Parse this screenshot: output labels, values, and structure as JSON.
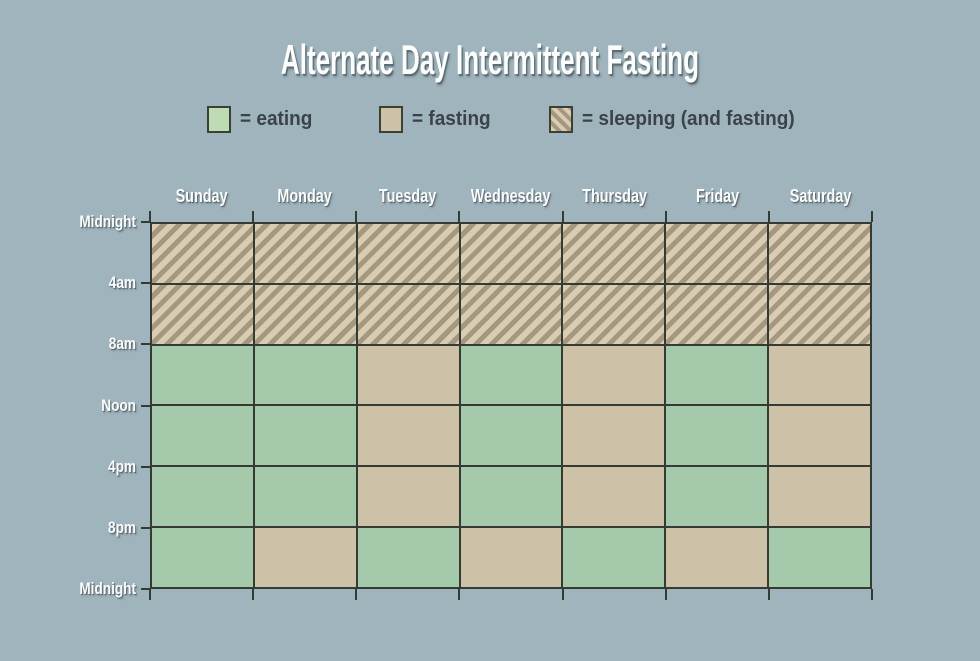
{
  "title": "Alternate Day Intermittent Fasting",
  "legend": {
    "items": [
      {
        "label": "= eating",
        "key": "eating"
      },
      {
        "label": "= fasting",
        "key": "fasting"
      },
      {
        "label": "= sleeping (and fasting)",
        "key": "sleeping"
      }
    ]
  },
  "colors": {
    "background": "#a0b4bd",
    "eating": "#a5c9ab",
    "legend_eating": "#bedcb4",
    "fasting": "#cdc2a8",
    "sleeping_light": "#d8ccb2",
    "sleeping_dark": "#a59780",
    "grid_line": "#333b33",
    "legend_text": "#3a4349",
    "label_text": "#fbfcfc"
  },
  "chart_data": {
    "type": "heatmap",
    "title": "Alternate Day Intermittent Fasting",
    "columns": [
      "Sunday",
      "Monday",
      "Tuesday",
      "Wednesday",
      "Thursday",
      "Friday",
      "Saturday"
    ],
    "time_axis_labels": [
      "Midnight",
      "4am",
      "8am",
      "Noon",
      "4pm",
      "8pm",
      "Midnight"
    ],
    "row_ranges": [
      "Midnight-4am",
      "4am-8am",
      "8am-Noon",
      "Noon-4pm",
      "4pm-8pm",
      "8pm-Midnight"
    ],
    "legend_entries": [
      "eating",
      "fasting",
      "sleeping (and fasting)"
    ],
    "layout": {
      "legend_position": "top",
      "grid": true
    },
    "cells": [
      [
        "sleeping",
        "sleeping",
        "sleeping",
        "sleeping",
        "sleeping",
        "sleeping",
        "sleeping"
      ],
      [
        "sleeping",
        "sleeping",
        "sleeping",
        "sleeping",
        "sleeping",
        "sleeping",
        "sleeping"
      ],
      [
        "eating",
        "eating",
        "fasting",
        "eating",
        "fasting",
        "eating",
        "fasting"
      ],
      [
        "eating",
        "eating",
        "fasting",
        "eating",
        "fasting",
        "eating",
        "fasting"
      ],
      [
        "eating",
        "eating",
        "fasting",
        "eating",
        "fasting",
        "eating",
        "fasting"
      ],
      [
        "eating",
        "fasting",
        "eating",
        "fasting",
        "eating",
        "fasting",
        "eating"
      ]
    ]
  }
}
